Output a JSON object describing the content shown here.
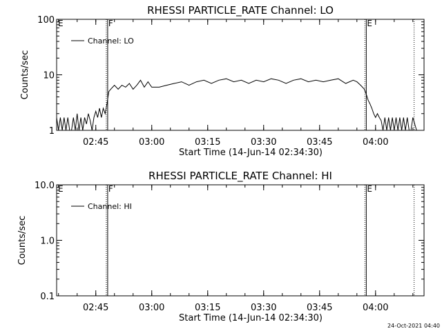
{
  "footer": {
    "timestamp": "24-Oct-2021 04:40"
  },
  "chart_data": [
    {
      "type": "line",
      "title": "RHESSI PARTICLE_RATE Channel: LO",
      "xlabel": "Start Time (14-Jun-14 02:34:30)",
      "ylabel": "Counts/sec",
      "x_unit": "minutes",
      "x_ticks": [
        "02:45",
        "03:00",
        "03:15",
        "03:30",
        "03:45",
        "04:00"
      ],
      "xlim": [
        "02:34:30",
        "04:13:00"
      ],
      "y_scale": "log",
      "ylim": [
        1,
        100
      ],
      "y_tick_labels": [
        "1",
        "10",
        "100"
      ],
      "legend": {
        "position": "top-left",
        "entries": [
          "Channel: LO"
        ]
      },
      "markers": [
        {
          "label": "E",
          "time": "02:34:30",
          "style": "none"
        },
        {
          "label": "F",
          "time": "02:48:00",
          "style": "solid"
        },
        {
          "label": "E",
          "time": "03:57:20",
          "style": "solid"
        },
        {
          "label": "",
          "time": "04:10:20",
          "style": "dotted"
        }
      ],
      "series": [
        {
          "name": "Channel: LO",
          "x": [
            "02:34:30",
            "02:35:00",
            "02:35:30",
            "02:36:00",
            "02:36:30",
            "02:37:00",
            "02:37:30",
            "02:38:00",
            "02:38:30",
            "02:39:00",
            "02:39:30",
            "02:40:00",
            "02:40:30",
            "02:41:00",
            "02:41:30",
            "02:42:00",
            "02:42:30",
            "02:43:00",
            "02:43:30",
            "02:44:00",
            "02:44:30",
            "02:45:00",
            "02:45:30",
            "02:46:00",
            "02:46:30",
            "02:47:00",
            "02:47:30",
            "02:48:00",
            "02:48:30",
            "02:49:00",
            "02:50:00",
            "02:51:00",
            "02:52:00",
            "02:53:00",
            "02:54:00",
            "02:55:00",
            "02:56:00",
            "02:57:00",
            "02:58:00",
            "02:59:00",
            "03:00:00",
            "03:02:00",
            "03:04:00",
            "03:06:00",
            "03:08:00",
            "03:10:00",
            "03:12:00",
            "03:14:00",
            "03:16:00",
            "03:18:00",
            "03:20:00",
            "03:22:00",
            "03:24:00",
            "03:26:00",
            "03:28:00",
            "03:30:00",
            "03:32:00",
            "03:34:00",
            "03:36:00",
            "03:38:00",
            "03:40:00",
            "03:42:00",
            "03:44:00",
            "03:46:00",
            "03:48:00",
            "03:50:00",
            "03:52:00",
            "03:54:00",
            "03:55:00",
            "03:56:00",
            "03:57:00",
            "03:57:30",
            "03:58:00",
            "03:58:30",
            "03:59:00",
            "03:59:30",
            "04:00:00",
            "04:00:30",
            "04:01:00",
            "04:01:30",
            "04:02:00",
            "04:02:30",
            "04:03:00",
            "04:03:30",
            "04:04:00",
            "04:04:30",
            "04:05:00",
            "04:05:30",
            "04:06:00",
            "04:06:30",
            "04:07:00",
            "04:07:30",
            "04:08:00",
            "04:08:30",
            "04:09:00",
            "04:09:30",
            "04:10:00",
            "04:11:00",
            "04:12:00",
            "04:13:00"
          ],
          "y": [
            1.7,
            1.0,
            1.7,
            1.0,
            1.7,
            1.0,
            1.7,
            1.0,
            1.0,
            1.7,
            1.0,
            2.0,
            1.0,
            1.7,
            1.0,
            1.7,
            1.3,
            2.0,
            1.5,
            1.0,
            1.7,
            2.2,
            1.7,
            2.5,
            1.7,
            2.5,
            2.0,
            3.0,
            5.0,
            5.5,
            6.5,
            5.5,
            6.5,
            6.0,
            7.0,
            5.5,
            6.5,
            8.0,
            6.0,
            7.5,
            6.0,
            6.0,
            6.5,
            7.0,
            7.5,
            6.5,
            7.5,
            8.0,
            7.0,
            8.0,
            8.5,
            7.5,
            8.0,
            7.0,
            8.0,
            7.5,
            8.5,
            8.0,
            7.0,
            8.0,
            8.5,
            7.5,
            8.0,
            7.5,
            8.0,
            8.5,
            7.0,
            8.0,
            7.5,
            6.5,
            5.5,
            4.5,
            3.5,
            3.0,
            2.5,
            2.0,
            1.7,
            2.0,
            1.7,
            1.5,
            1.0,
            1.7,
            1.0,
            1.7,
            1.0,
            1.7,
            1.0,
            1.7,
            1.0,
            1.7,
            1.0,
            1.7,
            1.0,
            1.7,
            1.0,
            1.0,
            1.7,
            1.0,
            1.0,
            1.0
          ]
        }
      ]
    },
    {
      "type": "line",
      "title": "RHESSI PARTICLE_RATE Channel: HI",
      "xlabel": "Start Time (14-Jun-14 02:34:30)",
      "ylabel": "Counts/sec",
      "x_ticks": [
        "02:45",
        "03:00",
        "03:15",
        "03:30",
        "03:45",
        "04:00"
      ],
      "xlim": [
        "02:34:30",
        "04:13:00"
      ],
      "y_scale": "log",
      "ylim": [
        0.1,
        10.0
      ],
      "y_tick_labels": [
        "0.1",
        "1.0",
        "10.0"
      ],
      "legend": {
        "position": "top-left",
        "entries": [
          "Channel: HI"
        ]
      },
      "markers": [
        {
          "label": "E",
          "time": "02:34:30",
          "style": "none"
        },
        {
          "label": "F",
          "time": "02:48:00",
          "style": "solid"
        },
        {
          "label": "E",
          "time": "03:57:20",
          "style": "solid"
        },
        {
          "label": "",
          "time": "04:10:20",
          "style": "dotted"
        }
      ],
      "series": [
        {
          "name": "Channel: HI",
          "x": [],
          "y": []
        }
      ]
    }
  ]
}
